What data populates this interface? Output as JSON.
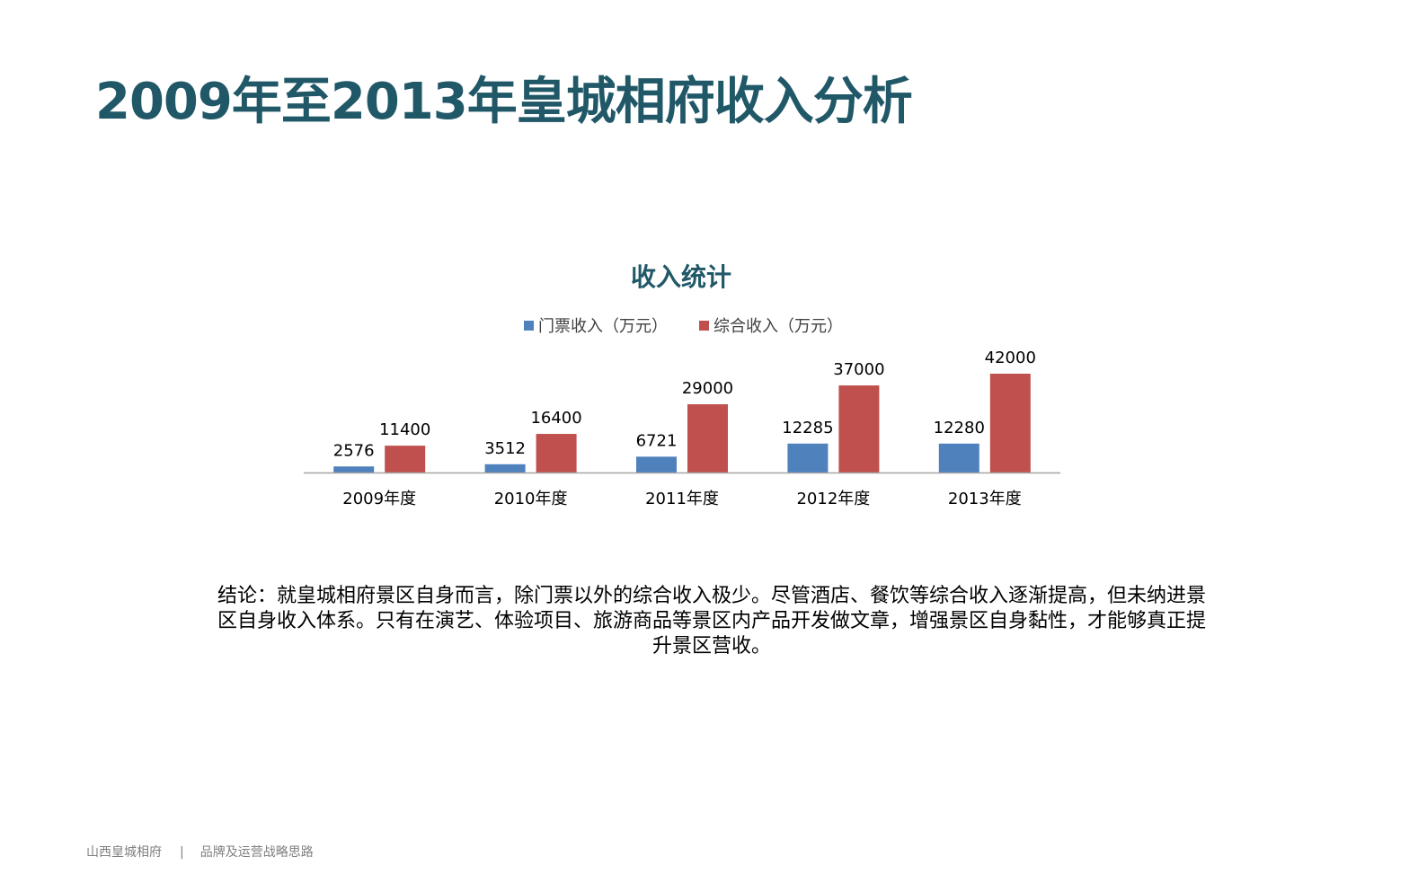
{
  "page": {
    "title": "2009年至2013年皇城相府收入分析",
    "conclusion": "结论：就皇城相府景区自身而言，除门票以外的综合收入极少。尽管酒店、餐饮等综合收入逐渐提高，但未纳进景区自身收入体系。只有在演艺、体验项目、旅游商品等景区内产品开发做文章，增强景区自身黏性，才能够真正提升景区营收。",
    "footer": {
      "left": "山西皇城相府",
      "separator": "|",
      "right": "品牌及运营战略思路"
    }
  },
  "colors": {
    "title": "#215868",
    "series_ticket": "#4F81BD",
    "series_total": "#C0504D",
    "axis": "#A6A6A6",
    "footer": "#7F7F7F"
  },
  "chart_data": {
    "type": "bar",
    "title": "收入统计",
    "categories": [
      "2009年度",
      "2010年度",
      "2011年度",
      "2012年度",
      "2013年度"
    ],
    "series": [
      {
        "name": "门票收入（万元）",
        "values": [
          2576,
          3512,
          6721,
          12285,
          12280
        ],
        "color": "#4F81BD"
      },
      {
        "name": "综合收入（万元）",
        "values": [
          11400,
          16400,
          29000,
          37000,
          42000
        ],
        "color": "#C0504D"
      }
    ],
    "xlabel": "",
    "ylabel": "",
    "ylim": [
      0,
      42000
    ],
    "data_labels": true,
    "gridlines": false,
    "y_axis_visible": false,
    "legend_position": "top"
  }
}
